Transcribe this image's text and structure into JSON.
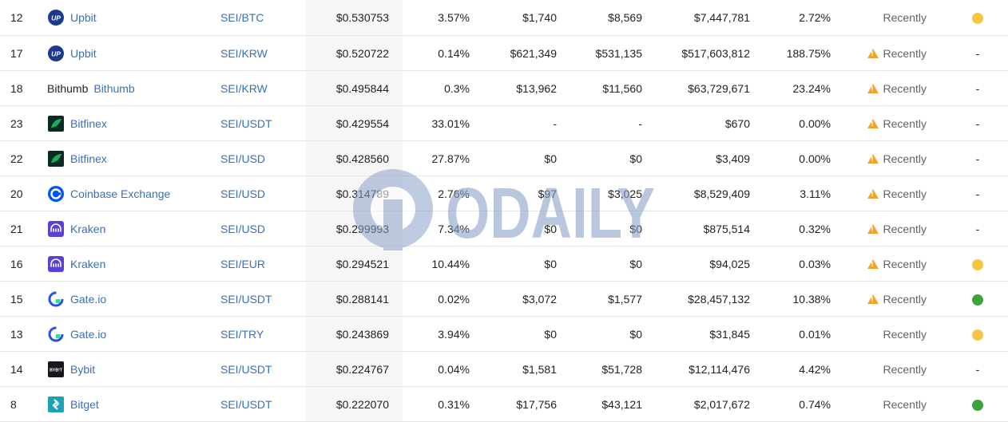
{
  "colors": {
    "link": "#3871b8",
    "warning": "#f0a330",
    "status_yellow": "#f6c343",
    "status_green": "#3aa53a",
    "price_column_bg": "#f6f6f6"
  },
  "watermark": {
    "text": "ODAILY"
  },
  "rows": [
    {
      "rank": "12",
      "exchange": "Upbit",
      "logo": "upbit-icon",
      "pair": "SEI/BTC",
      "price": "$0.530753",
      "spread": "3.57%",
      "depth_plus": "$1,740",
      "depth_minus": "$8,569",
      "volume": "$7,447,781",
      "volume_pct": "2.72%",
      "updated": "Recently",
      "warning": false,
      "status": "yellow"
    },
    {
      "rank": "17",
      "exchange": "Upbit",
      "logo": "upbit-icon",
      "pair": "SEI/KRW",
      "price": "$0.520722",
      "spread": "0.14%",
      "depth_plus": "$621,349",
      "depth_minus": "$531,135",
      "volume": "$517,603,812",
      "volume_pct": "188.75%",
      "updated": "Recently",
      "warning": true,
      "status": "-"
    },
    {
      "rank": "18",
      "exchange": "Bithumb",
      "logo_alt": "Bithumb",
      "logo": "bithumb-broken-image",
      "pair": "SEI/KRW",
      "price": "$0.495844",
      "spread": "0.3%",
      "depth_plus": "$13,962",
      "depth_minus": "$11,560",
      "volume": "$63,729,671",
      "volume_pct": "23.24%",
      "updated": "Recently",
      "warning": true,
      "status": "-"
    },
    {
      "rank": "23",
      "exchange": "Bitfinex",
      "logo": "bitfinex-icon",
      "pair": "SEI/USDT",
      "price": "$0.429554",
      "spread": "33.01%",
      "depth_plus": "-",
      "depth_minus": "-",
      "volume": "$670",
      "volume_pct": "0.00%",
      "updated": "Recently",
      "warning": true,
      "status": "-"
    },
    {
      "rank": "22",
      "exchange": "Bitfinex",
      "logo": "bitfinex-icon",
      "pair": "SEI/USD",
      "price": "$0.428560",
      "spread": "27.87%",
      "depth_plus": "$0",
      "depth_minus": "$0",
      "volume": "$3,409",
      "volume_pct": "0.00%",
      "updated": "Recently",
      "warning": true,
      "status": "-"
    },
    {
      "rank": "20",
      "exchange": "Coinbase Exchange",
      "logo": "coinbase-icon",
      "pair": "SEI/USD",
      "price": "$0.314789",
      "spread": "2.76%",
      "depth_plus": "$97",
      "depth_minus": "$3,025",
      "volume": "$8,529,409",
      "volume_pct": "3.11%",
      "updated": "Recently",
      "warning": true,
      "status": "-"
    },
    {
      "rank": "21",
      "exchange": "Kraken",
      "logo": "kraken-icon",
      "pair": "SEI/USD",
      "price": "$0.299993",
      "spread": "7.34%",
      "depth_plus": "$0",
      "depth_minus": "$0",
      "volume": "$875,514",
      "volume_pct": "0.32%",
      "updated": "Recently",
      "warning": true,
      "status": "-"
    },
    {
      "rank": "16",
      "exchange": "Kraken",
      "logo": "kraken-icon",
      "pair": "SEI/EUR",
      "price": "$0.294521",
      "spread": "10.44%",
      "depth_plus": "$0",
      "depth_minus": "$0",
      "volume": "$94,025",
      "volume_pct": "0.03%",
      "updated": "Recently",
      "warning": true,
      "status": "yellow"
    },
    {
      "rank": "15",
      "exchange": "Gate.io",
      "logo": "gateio-icon",
      "pair": "SEI/USDT",
      "price": "$0.288141",
      "spread": "0.02%",
      "depth_plus": "$3,072",
      "depth_minus": "$1,577",
      "volume": "$28,457,132",
      "volume_pct": "10.38%",
      "updated": "Recently",
      "warning": true,
      "status": "green"
    },
    {
      "rank": "13",
      "exchange": "Gate.io",
      "logo": "gateio-icon",
      "pair": "SEI/TRY",
      "price": "$0.243869",
      "spread": "3.94%",
      "depth_plus": "$0",
      "depth_minus": "$0",
      "volume": "$31,845",
      "volume_pct": "0.01%",
      "updated": "Recently",
      "warning": false,
      "status": "yellow"
    },
    {
      "rank": "14",
      "exchange": "Bybit",
      "logo": "bybit-icon",
      "logo_text": "BYB!T",
      "pair": "SEI/USDT",
      "price": "$0.224767",
      "spread": "0.04%",
      "depth_plus": "$1,581",
      "depth_minus": "$51,728",
      "volume": "$12,114,476",
      "volume_pct": "4.42%",
      "updated": "Recently",
      "warning": false,
      "status": "-"
    },
    {
      "rank": "8",
      "exchange": "Bitget",
      "logo": "bitget-icon",
      "pair": "SEI/USDT",
      "price": "$0.222070",
      "spread": "0.31%",
      "depth_plus": "$17,756",
      "depth_minus": "$43,121",
      "volume": "$2,017,672",
      "volume_pct": "0.74%",
      "updated": "Recently",
      "warning": false,
      "status": "green"
    }
  ]
}
